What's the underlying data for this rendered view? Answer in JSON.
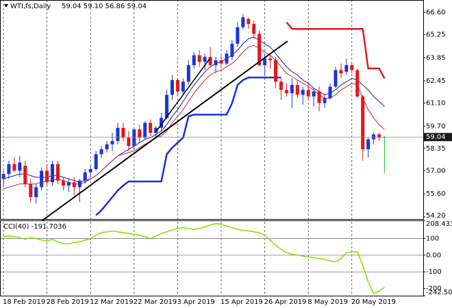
{
  "chart_data": [
    {
      "type": "candlestick",
      "title": "WTI,fs,Daily",
      "ohlc_text": "59.04 59.10 56.86 59.04",
      "categories": [
        "18 Feb 2019",
        null,
        null,
        null,
        null,
        null,
        null,
        null,
        "28 Feb 2019",
        null,
        null,
        null,
        null,
        null,
        null,
        null,
        "12 Mar 2019",
        null,
        null,
        null,
        null,
        null,
        null,
        null,
        "22 Mar 2019",
        null,
        null,
        null,
        null,
        null,
        null,
        null,
        "3 Apr 2019",
        null,
        null,
        null,
        null,
        null,
        null,
        null,
        "15 Apr 2019",
        null,
        null,
        null,
        null,
        null,
        null,
        null,
        "26 Apr 2019",
        null,
        null,
        null,
        null,
        null,
        null,
        null,
        "8 May 2019",
        null,
        null,
        null,
        null,
        null,
        null,
        null,
        "20 May 2019",
        null,
        null,
        null,
        null,
        null,
        null
      ],
      "open": [
        56.5,
        56.8,
        57.4,
        57.0,
        57.3,
        56.2,
        55.4,
        56.0,
        57.0,
        56.3,
        57.4,
        56.4,
        56.1,
        56.3,
        56.0,
        56.4,
        56.9,
        57.1,
        58.0,
        58.3,
        58.6,
        58.8,
        59.6,
        59.0,
        58.5,
        59.5,
        59.0,
        59.9,
        59.3,
        59.6,
        60.2,
        61.6,
        62.5,
        61.8,
        62.4,
        63.4,
        64.0,
        63.6,
        63.9,
        63.4,
        63.7,
        63.5,
        63.9,
        64.7,
        65.7,
        66.2,
        65.9,
        65.3,
        63.4,
        63.8,
        63.7,
        62.4,
        61.9,
        61.7,
        62.2,
        61.6,
        61.9,
        61.5,
        61.8,
        61.1,
        61.4,
        62.1,
        63.1,
        63.0,
        63.4,
        63.1,
        61.5,
        58.3,
        58.9,
        59.2,
        59.04
      ],
      "high": [
        57.0,
        57.6,
        57.8,
        57.9,
        57.6,
        56.5,
        56.2,
        57.2,
        57.4,
        57.6,
        57.6,
        56.6,
        56.5,
        56.6,
        56.5,
        57.1,
        57.3,
        58.2,
        58.5,
        58.8,
        59.3,
        59.9,
        59.9,
        59.4,
        59.6,
        59.8,
        60.0,
        60.1,
        59.7,
        60.5,
        61.9,
        62.8,
        62.6,
        62.6,
        63.7,
        64.2,
        64.3,
        64.1,
        64.5,
        63.9,
        64.0,
        64.3,
        64.9,
        66.0,
        66.5,
        66.3,
        66.1,
        65.5,
        64.1,
        64.0,
        63.9,
        62.6,
        62.3,
        62.6,
        62.5,
        62.1,
        62.3,
        62.0,
        62.1,
        61.6,
        62.3,
        63.3,
        63.5,
        63.8,
        63.5,
        63.2,
        61.6,
        59.0,
        59.3,
        59.3,
        59.1
      ],
      "low": [
        56.0,
        56.5,
        56.9,
        56.6,
        56.0,
        55.1,
        55.0,
        55.8,
        56.1,
        56.1,
        56.2,
        55.8,
        55.7,
        55.5,
        55.1,
        56.2,
        56.6,
        57.0,
        57.8,
        58.1,
        58.2,
        58.6,
        58.8,
        58.2,
        58.3,
        58.7,
        58.9,
        59.1,
        58.9,
        59.4,
        60.1,
        61.3,
        61.5,
        61.6,
        62.2,
        63.2,
        63.3,
        63.1,
        63.3,
        62.9,
        63.2,
        63.4,
        63.7,
        64.5,
        65.6,
        65.6,
        65.0,
        63.3,
        62.8,
        63.2,
        62.0,
        61.3,
        61.5,
        60.8,
        61.4,
        61.0,
        61.3,
        60.9,
        60.6,
        60.8,
        61.3,
        62.0,
        62.6,
        62.8,
        62.9,
        61.4,
        57.6,
        57.8,
        58.6,
        58.8,
        56.86
      ],
      "close": [
        56.8,
        57.4,
        57.0,
        57.5,
        56.2,
        55.4,
        56.0,
        57.0,
        56.3,
        57.4,
        56.4,
        56.1,
        56.3,
        56.0,
        56.4,
        56.9,
        57.1,
        58.0,
        58.3,
        58.6,
        58.8,
        59.6,
        59.0,
        58.5,
        59.5,
        59.0,
        59.9,
        59.3,
        59.6,
        60.2,
        61.6,
        62.5,
        61.8,
        62.4,
        63.4,
        64.0,
        63.6,
        63.9,
        63.4,
        63.7,
        63.5,
        64.1,
        64.7,
        65.7,
        66.3,
        65.9,
        65.3,
        63.4,
        63.8,
        63.7,
        62.4,
        61.9,
        61.7,
        62.2,
        61.6,
        61.9,
        61.5,
        61.8,
        61.1,
        61.4,
        62.1,
        63.1,
        62.9,
        63.4,
        63.1,
        61.5,
        58.3,
        58.9,
        59.2,
        59.0,
        59.04
      ],
      "up_color": "#1c35d8",
      "down_color": "#e3161c",
      "doji_color": "#28c628",
      "series": [
        {
          "color": "#1a1ab0",
          "width": 1,
          "values": [
            56.5,
            56.6,
            56.7,
            56.8,
            56.8,
            56.7,
            56.6,
            56.6,
            56.6,
            56.7,
            56.7,
            56.6,
            56.5,
            56.4,
            56.3,
            56.4,
            56.5,
            56.7,
            57.0,
            57.3,
            57.6,
            57.9,
            58.1,
            58.3,
            58.5,
            58.7,
            58.9,
            59.0,
            59.2,
            59.4,
            59.8,
            60.3,
            60.7,
            61.2,
            61.7,
            62.2,
            62.6,
            63.0,
            63.3,
            63.5,
            63.6,
            63.8,
            64.0,
            64.3,
            64.7,
            65.0,
            65.1,
            64.9,
            64.7,
            64.5,
            64.1,
            63.7,
            63.3,
            63.0,
            62.8,
            62.5,
            62.3,
            62.0,
            61.8,
            61.6,
            61.7,
            61.9,
            62.2,
            62.4,
            62.6,
            62.5,
            62.2,
            61.9,
            61.5,
            61.2,
            60.9
          ]
        },
        {
          "color": "#d42020",
          "width": 1,
          "values": [
            55.9,
            56.0,
            56.1,
            56.2,
            56.2,
            56.2,
            56.2,
            56.3,
            56.4,
            56.4,
            56.5,
            56.4,
            56.3,
            56.2,
            56.2,
            56.3,
            56.5,
            56.7,
            57.0,
            57.3,
            57.6,
            57.9,
            58.0,
            58.1,
            58.2,
            58.4,
            58.6,
            58.8,
            59.0,
            59.1,
            59.4,
            59.9,
            60.3,
            60.7,
            61.2,
            61.7,
            62.1,
            62.5,
            62.8,
            63.0,
            63.1,
            63.3,
            63.5,
            63.8,
            64.2,
            64.5,
            64.6,
            64.4,
            64.2,
            64.0,
            63.7,
            63.3,
            62.9,
            62.7,
            62.5,
            62.3,
            62.1,
            61.9,
            61.6,
            61.4,
            61.4,
            61.6,
            61.9,
            62.1,
            62.3,
            62.2,
            61.4,
            60.7,
            60.2,
            59.8,
            59.5
          ]
        },
        {
          "color": "#1430e0",
          "width": 2.5,
          "values": [
            null,
            null,
            null,
            null,
            null,
            null,
            null,
            null,
            null,
            null,
            null,
            null,
            null,
            null,
            null,
            null,
            null,
            54.3,
            54.6,
            55.0,
            55.4,
            55.8,
            56.1,
            56.35,
            56.35,
            56.35,
            56.35,
            56.35,
            56.35,
            56.35,
            58.0,
            58.4,
            58.7,
            59.0,
            60.3,
            60.4,
            60.4,
            60.4,
            60.4,
            60.4,
            60.4,
            60.4,
            61.1,
            62.2,
            62.5,
            62.65,
            62.65,
            62.65,
            62.65,
            62.65,
            62.65,
            62.65,
            null,
            null,
            null,
            null,
            null,
            null,
            null,
            null,
            null,
            null,
            null,
            null,
            null,
            null,
            null,
            null,
            null,
            null,
            null
          ]
        },
        {
          "color": "#e81818",
          "width": 2.5,
          "values": [
            null,
            null,
            null,
            null,
            null,
            null,
            null,
            null,
            null,
            null,
            null,
            null,
            null,
            null,
            null,
            null,
            null,
            null,
            null,
            null,
            null,
            null,
            null,
            null,
            null,
            null,
            null,
            null,
            null,
            null,
            null,
            null,
            null,
            null,
            null,
            null,
            null,
            null,
            null,
            null,
            null,
            null,
            null,
            null,
            null,
            null,
            null,
            null,
            null,
            null,
            null,
            null,
            66.0,
            65.6,
            65.6,
            65.6,
            65.6,
            65.6,
            65.6,
            65.6,
            65.6,
            65.6,
            65.6,
            65.6,
            65.6,
            65.6,
            65.6,
            63.2,
            63.2,
            63.2,
            62.6
          ]
        }
      ],
      "current_price": 59.04,
      "ylim": [
        54.07,
        67.35
      ],
      "yticks": [
        {
          "value": 66.6,
          "label": "66.60"
        },
        65.25,
        63.85,
        62.45,
        {
          "value": 61.1,
          "label": "61.10"
        },
        {
          "value": 59.7,
          "label": "59.70"
        },
        58.35,
        {
          "value": 57,
          "label": "57.00"
        },
        {
          "value": 55.6,
          "label": "55.60"
        },
        {
          "value": 54.2,
          "label": "54.20"
        }
      ]
    },
    {
      "type": "line",
      "title": "CCI(40) -191.7036",
      "series": [
        {
          "color": "#7ee000",
          "width": 1.5,
          "values": [
            110,
            115,
            112,
            105,
            95,
            105,
            100,
            90,
            85,
            95,
            80,
            70,
            68,
            75,
            80,
            90,
            100,
            120,
            135,
            140,
            145,
            140,
            135,
            130,
            125,
            120,
            110,
            100,
            115,
            130,
            140,
            150,
            160,
            165,
            160,
            155,
            160,
            170,
            180,
            190,
            185,
            175,
            165,
            155,
            150,
            145,
            140,
            135,
            120,
            90,
            60,
            35,
            15,
            5,
            0,
            -5,
            -10,
            -15,
            -20,
            -25,
            -35,
            -40,
            -20,
            15,
            20,
            20,
            -60,
            -160,
            -230,
            -215,
            -192
          ]
        }
      ],
      "levels": [
        100,
        0,
        -100
      ],
      "ylim": [
        -242.504,
        208.4337
      ],
      "yticks": [
        208.4337,
        100,
        {
          "value": 0,
          "label": "0.00"
        },
        -100,
        -200,
        -242.504
      ]
    }
  ]
}
